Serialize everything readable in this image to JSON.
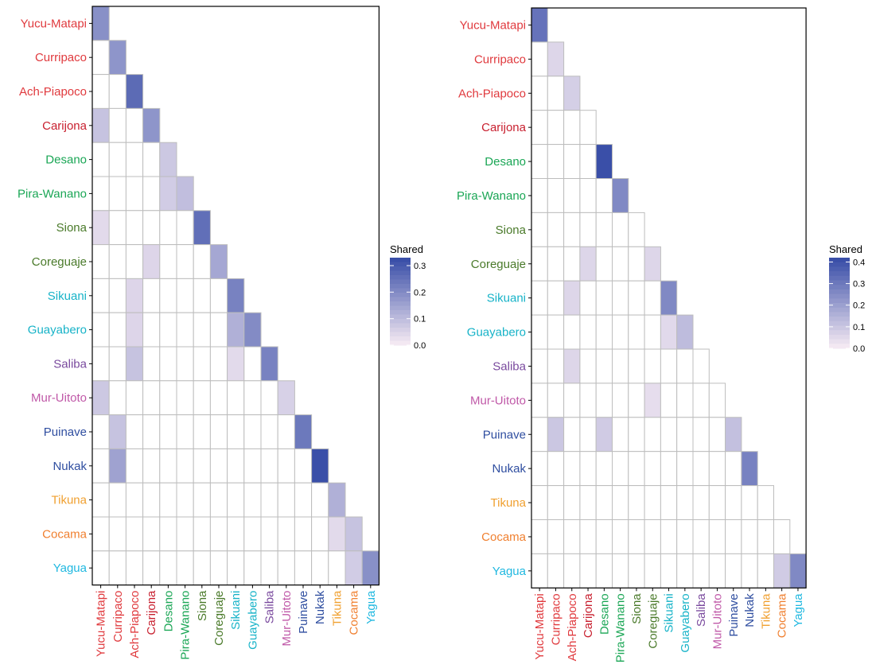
{
  "languages": [
    "Yucu-Matapi",
    "Curripaco",
    "Ach-Piapoco",
    "Carijona",
    "Desano",
    "Pira-Wanano",
    "Siona",
    "Coreguaje",
    "Sikuani",
    "Guayabero",
    "Saliba",
    "Mur-Uitoto",
    "Puinave",
    "Nukak",
    "Tikuna",
    "Cocama",
    "Yagua"
  ],
  "language_colors": [
    "#E03a3e",
    "#E03a3e",
    "#E03a3e",
    "#C8202f",
    "#1aa655",
    "#1aa655",
    "#4a7a2a",
    "#4a7a2a",
    "#17b3c8",
    "#17b3c8",
    "#7a4a9e",
    "#c059a8",
    "#2f4ea0",
    "#2f4ea0",
    "#f0a030",
    "#f08030",
    "#20b8e0"
  ],
  "colors": {
    "low": "#f3e8f2",
    "high": "#3a4fa8",
    "grid": "#bdbdbd",
    "frame": "#000000"
  },
  "chart_data": [
    {
      "type": "heatmap",
      "layout": "lower-triangle",
      "legend": {
        "title": "Shared",
        "ticks": [
          "0.3",
          "0.2",
          "0.1",
          "0.0"
        ],
        "tick_values": [
          0.3,
          0.2,
          0.1,
          0.0
        ],
        "range": [
          0,
          0.33
        ]
      },
      "cells": [
        {
          "row": 0,
          "col": 0,
          "value": 0.19
        },
        {
          "row": 1,
          "col": 1,
          "value": 0.18
        },
        {
          "row": 2,
          "col": 2,
          "value": 0.27
        },
        {
          "row": 3,
          "col": 0,
          "value": 0.08
        },
        {
          "row": 3,
          "col": 3,
          "value": 0.18
        },
        {
          "row": 4,
          "col": 4,
          "value": 0.07
        },
        {
          "row": 5,
          "col": 4,
          "value": 0.06
        },
        {
          "row": 5,
          "col": 5,
          "value": 0.09
        },
        {
          "row": 6,
          "col": 0,
          "value": 0.03
        },
        {
          "row": 6,
          "col": 6,
          "value": 0.26
        },
        {
          "row": 7,
          "col": 3,
          "value": 0.04
        },
        {
          "row": 7,
          "col": 7,
          "value": 0.14
        },
        {
          "row": 8,
          "col": 2,
          "value": 0.04
        },
        {
          "row": 8,
          "col": 8,
          "value": 0.22
        },
        {
          "row": 9,
          "col": 2,
          "value": 0.04
        },
        {
          "row": 9,
          "col": 8,
          "value": 0.12
        },
        {
          "row": 9,
          "col": 9,
          "value": 0.2
        },
        {
          "row": 10,
          "col": 2,
          "value": 0.08
        },
        {
          "row": 10,
          "col": 8,
          "value": 0.03
        },
        {
          "row": 10,
          "col": 10,
          "value": 0.22
        },
        {
          "row": 11,
          "col": 0,
          "value": 0.07
        },
        {
          "row": 11,
          "col": 11,
          "value": 0.05
        },
        {
          "row": 12,
          "col": 1,
          "value": 0.08
        },
        {
          "row": 12,
          "col": 12,
          "value": 0.24
        },
        {
          "row": 13,
          "col": 1,
          "value": 0.15
        },
        {
          "row": 13,
          "col": 13,
          "value": 0.33
        },
        {
          "row": 14,
          "col": 14,
          "value": 0.12
        },
        {
          "row": 15,
          "col": 14,
          "value": 0.03
        },
        {
          "row": 15,
          "col": 15,
          "value": 0.08
        },
        {
          "row": 16,
          "col": 15,
          "value": 0.06
        },
        {
          "row": 16,
          "col": 16,
          "value": 0.19
        }
      ]
    },
    {
      "type": "heatmap",
      "layout": "lower-triangle",
      "legend": {
        "title": "Shared",
        "ticks": [
          "0.4",
          "0.3",
          "0.2",
          "0.1",
          "0.0"
        ],
        "tick_values": [
          0.4,
          0.3,
          0.2,
          0.1,
          0.0
        ],
        "range": [
          0,
          0.42
        ]
      },
      "cells": [
        {
          "row": 0,
          "col": 0,
          "value": 0.32
        },
        {
          "row": 1,
          "col": 1,
          "value": 0.05
        },
        {
          "row": 2,
          "col": 2,
          "value": 0.07
        },
        {
          "row": 7,
          "col": 3,
          "value": 0.05
        },
        {
          "row": 7,
          "col": 7,
          "value": 0.05
        },
        {
          "row": 4,
          "col": 4,
          "value": 0.42
        },
        {
          "row": 5,
          "col": 5,
          "value": 0.26
        },
        {
          "row": 6,
          "col": 7,
          "value": 0.06
        },
        {
          "row": 8,
          "col": 2,
          "value": 0.05
        },
        {
          "row": 8,
          "col": 8,
          "value": 0.26
        },
        {
          "row": 9,
          "col": 8,
          "value": 0.04
        },
        {
          "row": 9,
          "col": 9,
          "value": 0.12
        },
        {
          "row": 10,
          "col": 2,
          "value": 0.05
        },
        {
          "row": 11,
          "col": 7,
          "value": 0.03
        },
        {
          "row": 12,
          "col": 1,
          "value": 0.09
        },
        {
          "row": 12,
          "col": 4,
          "value": 0.08
        },
        {
          "row": 12,
          "col": 12,
          "value": 0.11
        },
        {
          "row": 13,
          "col": 13,
          "value": 0.28
        },
        {
          "row": 16,
          "col": 15,
          "value": 0.08
        },
        {
          "row": 16,
          "col": 16,
          "value": 0.26
        }
      ]
    }
  ]
}
